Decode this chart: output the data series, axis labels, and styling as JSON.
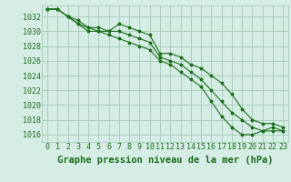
{
  "title": "Graphe pression niveau de la mer (hPa)",
  "xlabel_hours": [
    0,
    1,
    2,
    3,
    4,
    5,
    6,
    7,
    8,
    9,
    10,
    11,
    12,
    13,
    14,
    15,
    16,
    17,
    18,
    19,
    20,
    21,
    22,
    23
  ],
  "series1": [
    1033.0,
    1033.0,
    1032.0,
    1031.5,
    1030.5,
    1030.5,
    1030.0,
    1031.0,
    1030.5,
    1030.0,
    1029.5,
    1027.0,
    1027.0,
    1026.5,
    1025.5,
    1025.0,
    1024.0,
    1023.0,
    1021.5,
    1019.5,
    1018.0,
    1017.5,
    1017.5,
    1017.0
  ],
  "series2": [
    1033.0,
    1033.0,
    1032.0,
    1031.0,
    1030.5,
    1030.0,
    1030.0,
    1030.0,
    1029.5,
    1029.0,
    1028.5,
    1026.5,
    1026.0,
    1025.5,
    1024.5,
    1023.5,
    1022.0,
    1020.5,
    1019.0,
    1018.0,
    1017.0,
    1016.5,
    1016.5,
    1016.5
  ],
  "series3": [
    1033.0,
    1033.0,
    1032.0,
    1031.0,
    1030.0,
    1030.0,
    1029.5,
    1029.0,
    1028.5,
    1028.0,
    1027.5,
    1026.0,
    1025.5,
    1024.5,
    1023.5,
    1022.5,
    1020.5,
    1018.5,
    1017.0,
    1016.0,
    1016.0,
    1016.5,
    1017.0,
    1016.5
  ],
  "line_color": "#1a6e1a",
  "bg_color": "#d5ede4",
  "grid_color": "#9ec4b0",
  "ylim": [
    1015.0,
    1033.5
  ],
  "yticks": [
    1016,
    1018,
    1020,
    1022,
    1024,
    1026,
    1028,
    1030,
    1032
  ],
  "title_fontsize": 7.5,
  "tick_fontsize": 6.0,
  "marker_size": 2.5,
  "line_width": 0.8
}
